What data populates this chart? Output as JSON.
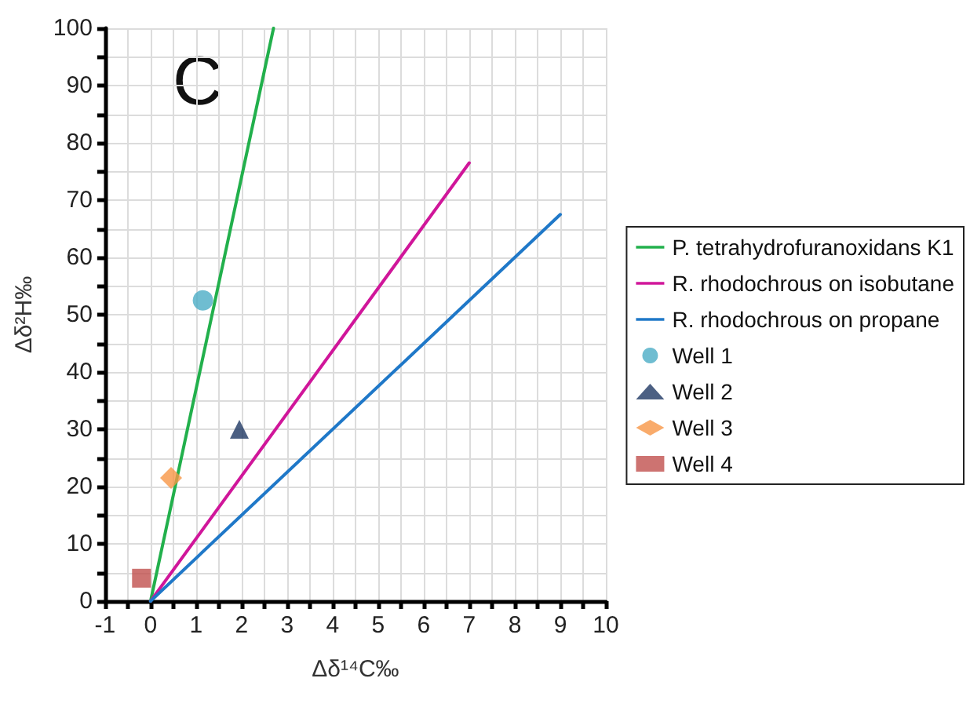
{
  "chart_data": {
    "type": "scatter",
    "xlabel": "Δδ¹⁴C‰",
    "ylabel": "Δδ²H‰",
    "annotations": [
      "C"
    ],
    "xlim": [
      -1,
      10
    ],
    "xticks": [
      -1,
      {
        "value": -0.5,
        "label": null
      },
      0,
      {
        "value": 0.5,
        "label": null
      },
      1,
      {
        "value": 1.5,
        "label": null
      },
      2,
      {
        "value": 2.5,
        "label": null
      },
      3,
      {
        "value": 3.5,
        "label": null
      },
      4,
      {
        "value": 4.5,
        "label": null
      },
      5,
      {
        "value": 5.5,
        "label": null
      },
      6,
      {
        "value": 6.5,
        "label": null
      },
      7,
      {
        "value": 7.5,
        "label": null
      },
      8,
      {
        "value": 8.5,
        "label": null
      },
      9,
      {
        "value": 9.5,
        "label": null
      },
      10
    ],
    "ylim": [
      0,
      100
    ],
    "yticks": [
      0,
      {
        "value": 5,
        "label": null
      },
      10,
      {
        "value": 15,
        "label": null
      },
      20,
      {
        "value": 25,
        "label": null
      },
      30,
      {
        "value": 35,
        "label": null
      },
      40,
      {
        "value": 45,
        "label": null
      },
      50,
      {
        "value": 55,
        "label": null
      },
      60,
      {
        "value": 65,
        "label": null
      },
      70,
      {
        "value": 75,
        "label": null
      },
      80,
      {
        "value": 85,
        "label": null
      },
      90,
      {
        "value": 95,
        "label": null
      },
      100
    ],
    "grid": true,
    "legend": "right",
    "series": [
      {
        "name": "P. tetrahydrofuranoxidans K1",
        "type": "line",
        "marker": "none",
        "color": "#22b04c",
        "x": [
          0,
          2.7
        ],
        "values": [
          0,
          100
        ]
      },
      {
        "name": "R. rhodochrous on isobutane",
        "type": "line",
        "marker": "none",
        "color": "#d0169a",
        "x": [
          0,
          7
        ],
        "values": [
          0,
          76.5
        ]
      },
      {
        "name": "R. rhodochrous on propane",
        "type": "line",
        "marker": "none",
        "color": "#1f78c8",
        "x": [
          0,
          9
        ],
        "values": [
          0,
          67.5
        ]
      },
      {
        "name": "Well 1",
        "marker": "circle",
        "color": "#4bacc6",
        "x": [
          1.15
        ],
        "values": [
          52.5
        ]
      },
      {
        "name": "Well 2",
        "marker": "triangle",
        "color": "#1f3864",
        "x": [
          1.95
        ],
        "values": [
          30
        ]
      },
      {
        "name": "Well 3",
        "marker": "diamond",
        "color": "#f79646",
        "x": [
          0.45
        ],
        "values": [
          21.5
        ]
      },
      {
        "name": "Well 4",
        "marker": "square",
        "color": "#c0504d",
        "x": [
          -0.2
        ],
        "values": [
          4
        ]
      }
    ]
  }
}
